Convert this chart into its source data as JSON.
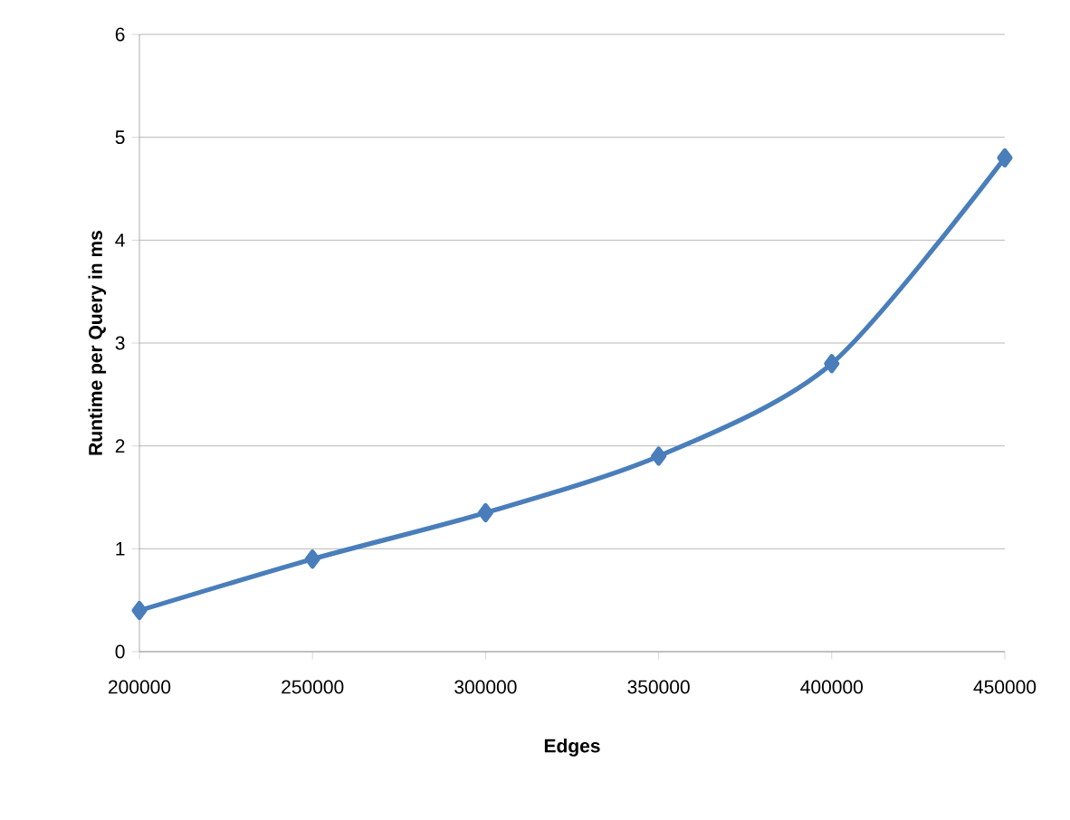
{
  "chart_data": {
    "type": "line",
    "xlabel": "Edges",
    "ylabel": "Runtime per Query in ms",
    "x": [
      200000,
      250000,
      300000,
      350000,
      400000,
      450000
    ],
    "series": [
      {
        "color": "#4a7ebb",
        "values": [
          0.4,
          0.9,
          1.35,
          1.9,
          2.8,
          4.8
        ]
      }
    ],
    "xlim": [
      200000,
      450000
    ],
    "xticks": [
      200000,
      250000,
      300000,
      350000,
      400000,
      450000
    ],
    "ylim": [
      0,
      6
    ],
    "yticks": [
      0,
      1,
      2,
      3,
      4,
      5,
      6
    ],
    "grid": "y",
    "marker": "diamond",
    "line_style": "solid"
  }
}
